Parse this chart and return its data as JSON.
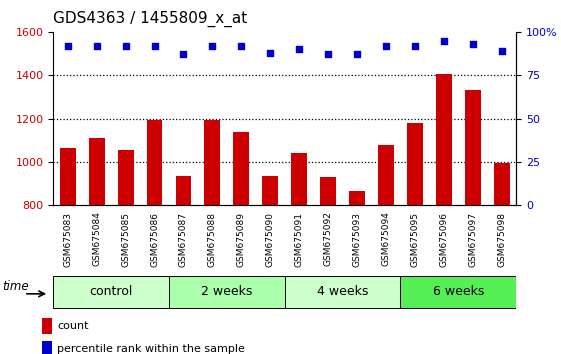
{
  "title": "GDS4363 / 1455809_x_at",
  "categories": [
    "GSM675083",
    "GSM675084",
    "GSM675085",
    "GSM675086",
    "GSM675087",
    "GSM675088",
    "GSM675089",
    "GSM675090",
    "GSM675091",
    "GSM675092",
    "GSM675093",
    "GSM675094",
    "GSM675095",
    "GSM675096",
    "GSM675097",
    "GSM675098"
  ],
  "bar_values": [
    1065,
    1110,
    1055,
    1195,
    935,
    1195,
    1140,
    935,
    1040,
    930,
    865,
    1080,
    1180,
    1405,
    1330,
    995
  ],
  "percentile_values": [
    92,
    92,
    92,
    92,
    87,
    92,
    92,
    88,
    90,
    87,
    87,
    92,
    92,
    95,
    93,
    89
  ],
  "ylim_left": [
    800,
    1600
  ],
  "ylim_right": [
    0,
    100
  ],
  "yticks_left": [
    800,
    1000,
    1200,
    1400,
    1600
  ],
  "yticks_right": [
    0,
    25,
    50,
    75,
    100
  ],
  "ytick_labels_right": [
    "0",
    "25",
    "50",
    "75",
    "100%"
  ],
  "bar_color": "#CC0000",
  "dot_color": "#0000CC",
  "bg_color": "#FFFFFF",
  "xtick_bg_color": "#CCCCCC",
  "groups": [
    {
      "label": "control",
      "start": 0,
      "end": 3,
      "color": "#CCFFCC"
    },
    {
      "label": "2 weeks",
      "start": 4,
      "end": 7,
      "color": "#AAFFAA"
    },
    {
      "label": "4 weeks",
      "start": 8,
      "end": 11,
      "color": "#CCFFCC"
    },
    {
      "label": "6 weeks",
      "start": 12,
      "end": 15,
      "color": "#55EE55"
    }
  ],
  "time_label": "time",
  "legend_count_label": "count",
  "legend_pct_label": "percentile rank within the sample"
}
